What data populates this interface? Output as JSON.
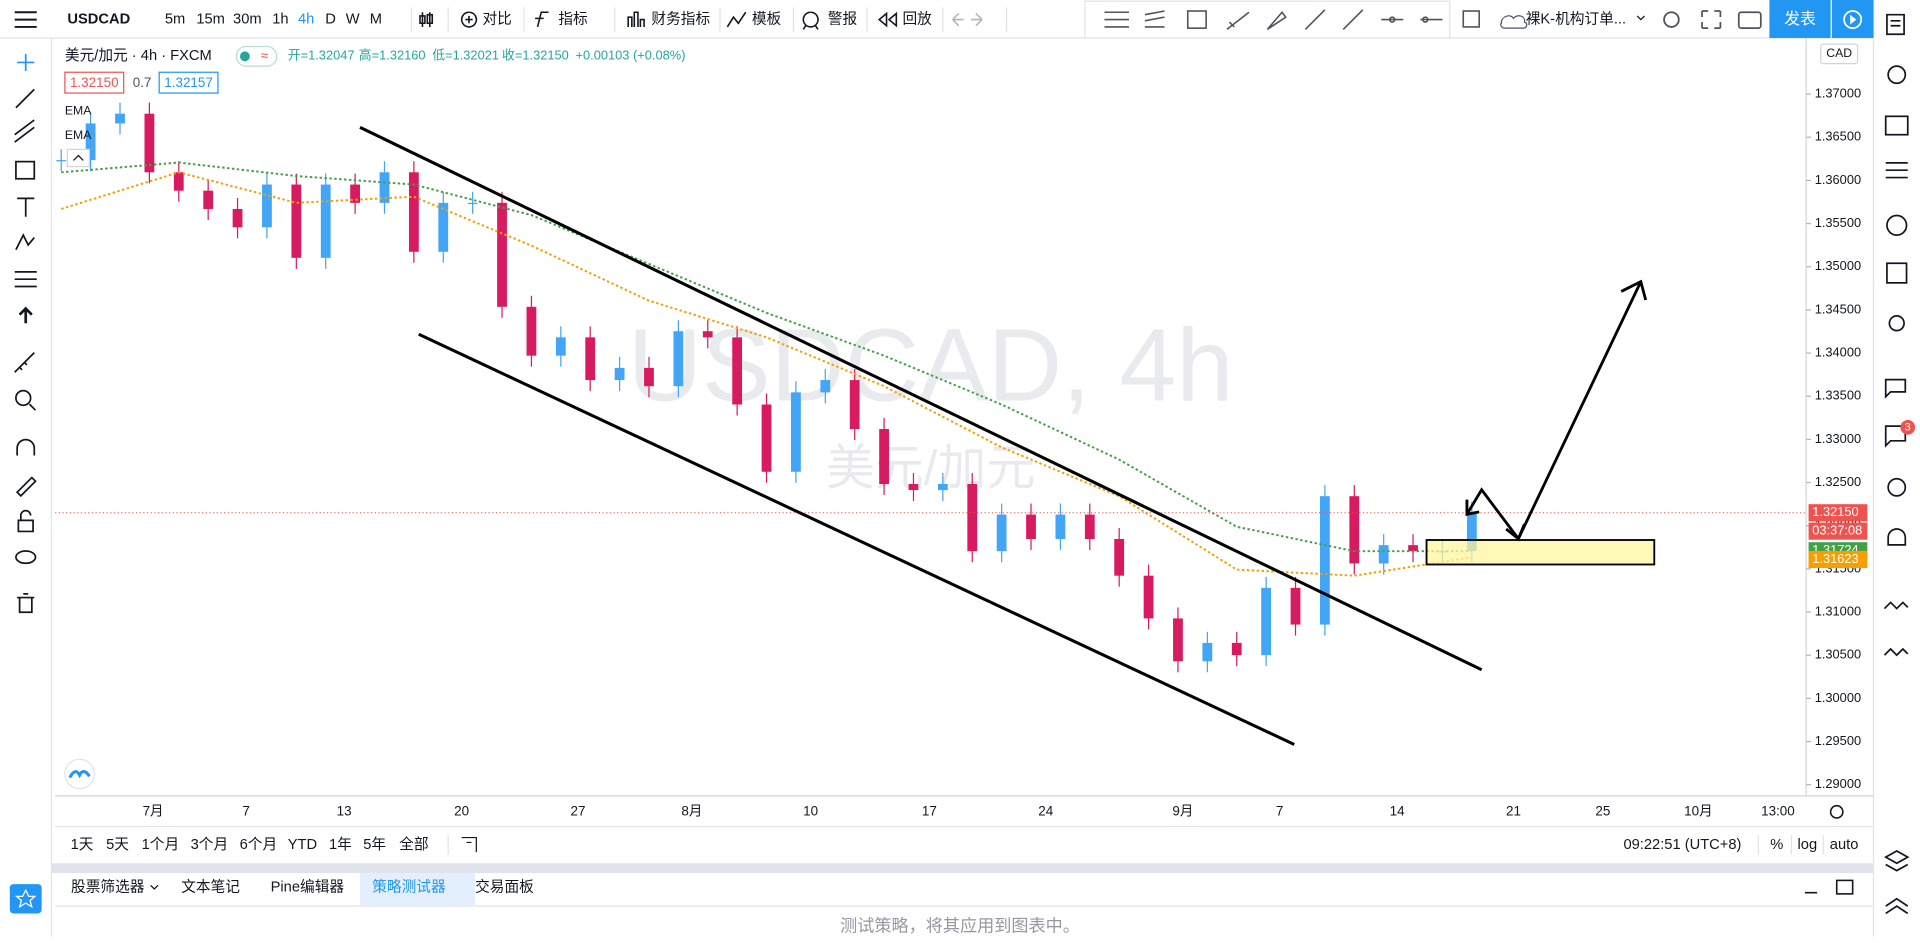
{
  "top_toolbar": {
    "symbol": "USDCAD",
    "intervals": [
      "5m",
      "15m",
      "30m",
      "1h",
      "4h",
      "D",
      "W",
      "M"
    ],
    "active_interval": "4h",
    "buttons": [
      "对比",
      "指标",
      "财务指标",
      "模板",
      "警报",
      "回放"
    ],
    "layout_name": "裸K-机构订单...",
    "publish": "发表"
  },
  "chart_data": {
    "type": "candlestick",
    "title": "美元/加元 · 4h · FXCM",
    "ohlc": [
      "开=1.32047",
      "高=1.32160",
      "低=1.32021",
      "收=1.32150",
      "+0.00103 (+0.08%)"
    ],
    "bid_ask": [
      "1.32150",
      "0.7",
      "1.32157"
    ],
    "indicator_labels": [
      "EMA",
      "EMA"
    ],
    "watermark": "USDCAD, 4h",
    "watermark_sub": "美元/加元",
    "currency": "CAD",
    "up_color": "#42a5f5",
    "down_color": "#d81b60",
    "series": [
      {
        "name": "USDCAD",
        "values": [
          1.36235,
          1.3666,
          1.36773,
          1.36094,
          1.35881,
          1.35669,
          1.35457,
          1.35952,
          1.35103,
          1.35952,
          1.3574,
          1.36094,
          1.35173,
          1.3574,
          1.3574,
          1.34536,
          1.3397,
          1.34182,
          1.33687,
          1.33828,
          1.33616,
          1.34253,
          1.34182,
          1.33404,
          1.32625,
          1.33545,
          1.33687,
          1.3312,
          1.32483,
          1.32413,
          1.32483,
          1.31705,
          1.32129,
          1.31846,
          1.32129,
          1.31846,
          1.31421,
          1.30926,
          1.3043,
          1.30643,
          1.30501,
          1.3128,
          1.30855,
          1.32342,
          1.31563,
          1.31775,
          1.31705,
          1.31705,
          1.3215
        ]
      },
      {
        "name": "EMA",
        "color": "#43a047",
        "values": [
          1.36094,
          1.36207,
          1.36051,
          1.35952,
          1.35598,
          1.35032,
          1.34466,
          1.3397,
          1.33404,
          1.32766,
          1.31988,
          1.31705,
          1.31705
        ]
      },
      {
        "name": "EMA",
        "color": "#f59f00",
        "values": [
          1.35669,
          1.36094,
          1.3574,
          1.35811,
          1.35244,
          1.34607,
          1.34182,
          1.33616,
          1.32908,
          1.32342,
          1.31492,
          1.31421,
          1.31634
        ]
      }
    ],
    "ylim": [
      1.2887,
      1.3765
    ],
    "yticks": [
      {
        "value": 1.29,
        "label": "1.29000"
      },
      {
        "value": 1.295,
        "label": "1.29500"
      },
      {
        "value": 1.3,
        "label": "1.30000"
      },
      {
        "value": 1.305,
        "label": "1.30500"
      },
      {
        "value": 1.31,
        "label": "1.31000"
      },
      {
        "value": 1.315,
        "label": "1.31500"
      },
      {
        "value": 1.32,
        "label": "1.32000"
      },
      {
        "value": 1.325,
        "label": "1.32500"
      },
      {
        "value": 1.33,
        "label": "1.33000"
      },
      {
        "value": 1.335,
        "label": "1.33500"
      },
      {
        "value": 1.34,
        "label": "1.34000"
      },
      {
        "value": 1.345,
        "label": "1.34500"
      },
      {
        "value": 1.35,
        "label": "1.35000"
      },
      {
        "value": 1.355,
        "label": "1.35500"
      },
      {
        "value": 1.36,
        "label": "1.36000"
      },
      {
        "value": 1.365,
        "label": "1.36500"
      },
      {
        "value": 1.37,
        "label": "1.37000"
      }
    ],
    "price_tags": [
      {
        "value": 1.3215,
        "label": "1.32150",
        "color": "#ef5350"
      },
      {
        "value": 1.31724,
        "label": "1.31724",
        "color": "#43a047"
      },
      {
        "value": 1.31623,
        "label": "1.31623",
        "color": "#f59f00"
      }
    ],
    "countdown": "03:37:08",
    "x_labels": [
      "7月",
      "7",
      "13",
      "20",
      "27",
      "8月",
      "10",
      "17",
      "24",
      "9月",
      "7",
      "14",
      "21",
      "25",
      "10月",
      "13:00"
    ],
    "grid": false
  },
  "range_bar": {
    "ranges": [
      "1天",
      "5天",
      "1个月",
      "3个月",
      "6个月",
      "YTD",
      "1年",
      "5年",
      "全部"
    ],
    "clock": "09:22:51 (UTC+8)",
    "scale_options": [
      "%",
      "log",
      "auto"
    ]
  },
  "bottom_panel": {
    "tabs": [
      "股票筛选器",
      "文本笔记",
      "Pine编辑器",
      "策略测试器",
      "交易面板"
    ],
    "active_tab": "策略测试器",
    "message": "测试策略，将其应用到图表中。"
  },
  "right_toolbar": {
    "badge": "3"
  }
}
